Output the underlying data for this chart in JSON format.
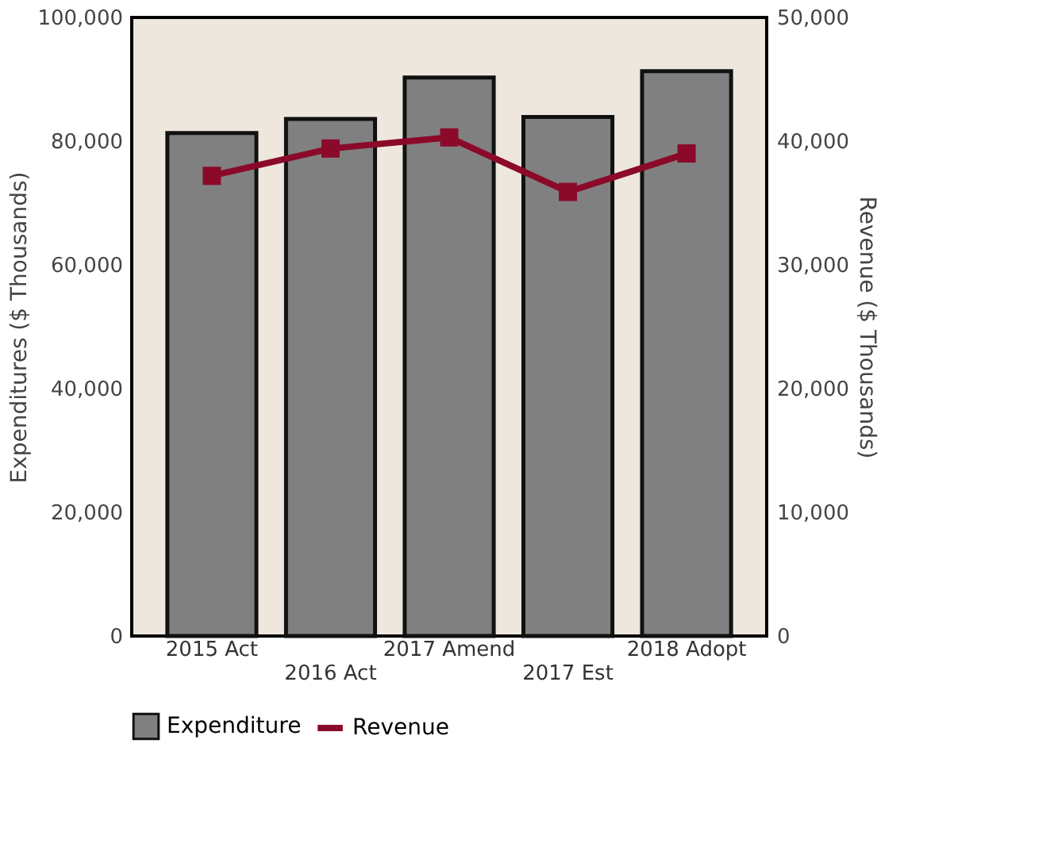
{
  "chart_data": {
    "type": "bar",
    "ylabel": "Expenditures ($ Thousands)",
    "y2label": "Revenue ($ Thousands)",
    "categories": [
      "2015 Act",
      "2016 Act",
      "2017 Amend",
      "2017 Est",
      "2018 Adopt"
    ],
    "series": [
      {
        "name": "Expenditure",
        "color": "#808080",
        "values": [
          81300,
          83600,
          90300,
          83900,
          91300
        ]
      },
      {
        "name": "Revenue",
        "type": "line",
        "axis": "y2",
        "color": "#8b0a2a",
        "marker": "square",
        "values": [
          37200,
          39400,
          40300,
          35900,
          39000
        ]
      }
    ],
    "ylim": [
      0,
      100000
    ],
    "yticks": [
      0,
      {
        "value": 20000,
        "label": "20,000"
      },
      {
        "value": 40000,
        "label": "40,000"
      },
      {
        "value": 60000,
        "label": "60,000"
      },
      {
        "value": 80000,
        "label": "80,000"
      },
      {
        "value": 100000,
        "label": "100,000"
      }
    ],
    "y2lim": [
      0,
      50000
    ],
    "y2ticks": [
      0,
      {
        "value": 10000,
        "label": "10,000"
      },
      {
        "value": 20000,
        "label": "20,000"
      },
      {
        "value": 30000,
        "label": "30,000"
      },
      {
        "value": 40000,
        "label": "40,000"
      },
      {
        "value": 50000,
        "label": "50,000"
      }
    ],
    "grid": false,
    "legend": "bottom"
  }
}
